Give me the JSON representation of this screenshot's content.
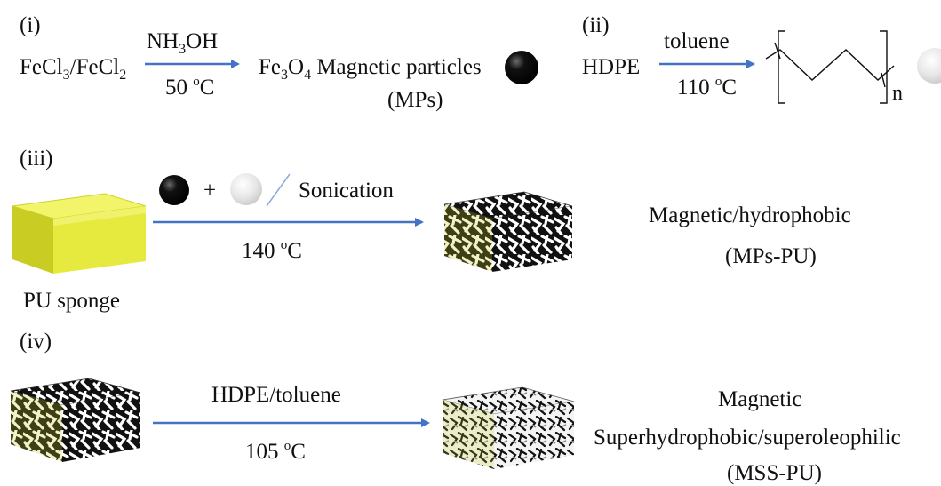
{
  "row1": {
    "label": "(i)",
    "reactant_a": "FeCl",
    "reactant_a_sub": "3",
    "slash": "/FeCl",
    "reactant_b_sub": "2",
    "reagent": "NH",
    "reagent_sub": "3",
    "reagent_tail": "OH",
    "temp_value": "50 ",
    "temp_sup": "o",
    "temp_unit": "C",
    "product_a": "Fe",
    "product_a_sub1": "3",
    "product_a_mid": "O",
    "product_a_sub2": "4",
    "product_name": " Magnetic particles",
    "product_abbr": "(MPs)"
  },
  "row2": {
    "label": "(ii)",
    "reactant": "HDPE",
    "solvent": "toluene",
    "temp_value": "110 ",
    "temp_sup": "o",
    "temp_unit": "C",
    "repeat": "n"
  },
  "row3": {
    "label": "(iii)",
    "plus": "+",
    "method": "Sonication",
    "temp_value": "140 ",
    "temp_sup": "o",
    "temp_unit": "C",
    "sponge_label": "PU sponge",
    "result_line1": "Magnetic/hydrophobic",
    "result_line2": "(MPs-PU)"
  },
  "row4": {
    "label": "(iv)",
    "reagent": "HDPE/toluene",
    "temp_value": "105 ",
    "temp_sup": "o",
    "temp_unit": "C",
    "result_line1": "Magnetic",
    "result_line2": "Superhydrophobic/superoleophilic",
    "result_line3": "(MSS-PU)"
  },
  "colors": {
    "arrow": "#4472c4",
    "sponge_top": "#f2f56a",
    "sponge_side": "#d6d82a",
    "particle_black": "#000000",
    "particle_white": "#e8e8e8"
  }
}
